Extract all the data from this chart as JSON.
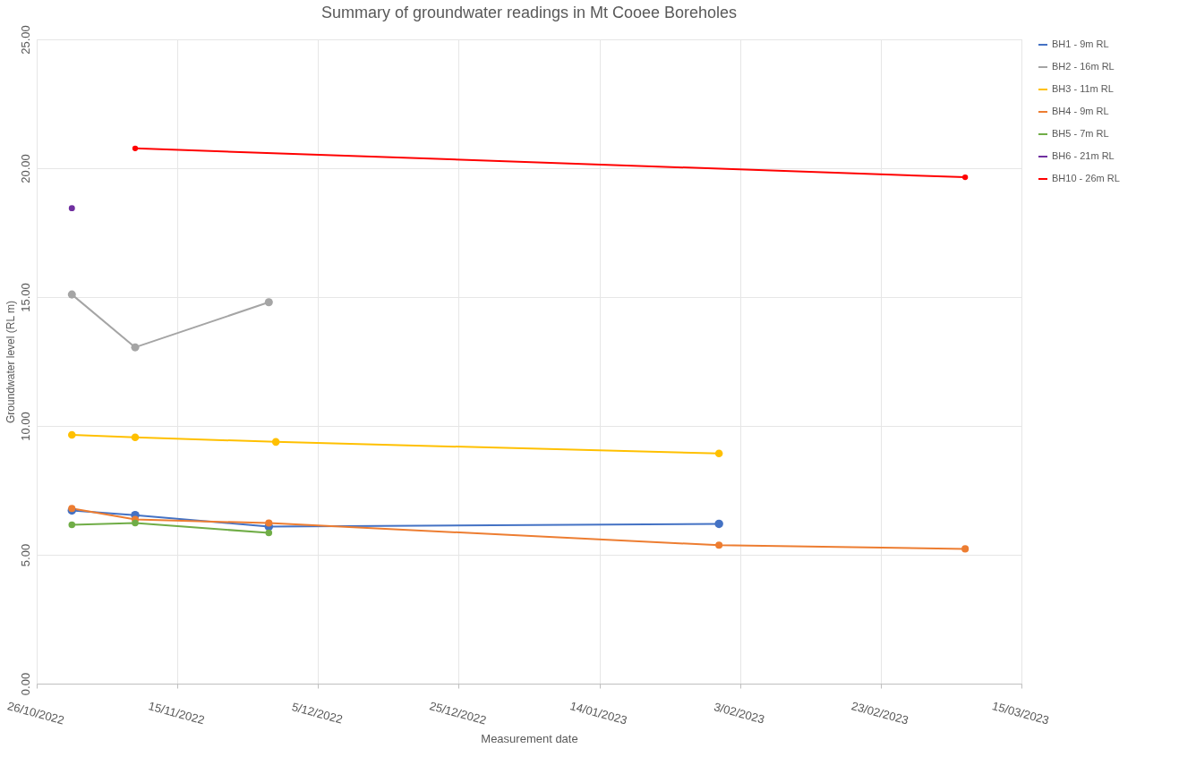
{
  "chart_data": {
    "type": "line",
    "title": "Summary of groundwater readings in Mt Cooee Boreholes",
    "xlabel": "Measurement date",
    "ylabel": "Groundwater level (RL m)",
    "x": [
      "2022-10-31",
      "2022-11-09",
      "2022-11-28",
      "2022-11-29",
      "2023-01-31",
      "2023-03-07"
    ],
    "series": [
      {
        "name": "BH1 - 9m RL",
        "color": "#4472c4",
        "values": [
          6.72,
          6.54,
          6.09,
          null,
          6.2,
          null
        ]
      },
      {
        "name": "BH2 - 16m RL",
        "color": "#a5a5a5",
        "values": [
          15.1,
          13.05,
          14.8,
          null,
          null,
          null
        ]
      },
      {
        "name": "BH3 - 11m RL",
        "color": "#ffc000",
        "values": [
          9.65,
          9.56,
          null,
          9.38,
          8.93,
          null
        ]
      },
      {
        "name": "BH4 - 9m RL",
        "color": "#ed7d31",
        "values": [
          6.8,
          6.37,
          6.23,
          null,
          5.37,
          5.23
        ]
      },
      {
        "name": "BH5 - 7m RL",
        "color": "#70ad47",
        "values": [
          6.16,
          6.23,
          5.85,
          null,
          null,
          null
        ]
      },
      {
        "name": "BH6 - 21m RL",
        "color": "#7030a0",
        "values": [
          18.45,
          null,
          null,
          null,
          null,
          null
        ]
      },
      {
        "name": "BH10 - 26m RL",
        "color": "#ff0000",
        "values": [
          null,
          20.77,
          null,
          null,
          null,
          19.65
        ]
      }
    ],
    "xlim": [
      "2022-10-26",
      "2023-03-15"
    ],
    "xticks": [
      {
        "value": "2022-10-26",
        "label": "26/10/2022"
      },
      {
        "value": "2022-11-15",
        "label": "15/11/2022"
      },
      {
        "value": "2022-12-05",
        "label": "5/12/2022"
      },
      {
        "value": "2022-12-25",
        "label": "25/12/2022"
      },
      {
        "value": "2023-01-14",
        "label": "14/01/2023"
      },
      {
        "value": "2023-02-03",
        "label": "3/02/2023"
      },
      {
        "value": "2023-02-23",
        "label": "23/02/2023"
      },
      {
        "value": "2023-03-15",
        "label": "15/03/2023"
      }
    ],
    "ylim": [
      0,
      25
    ],
    "yticks": [
      {
        "value": 0,
        "label": "0.00"
      },
      {
        "value": 5,
        "label": "5.00"
      },
      {
        "value": 10,
        "label": "10.00"
      },
      {
        "value": 15,
        "label": "15.00"
      },
      {
        "value": 20,
        "label": "20.00"
      },
      {
        "value": 25,
        "label": "25.00"
      }
    ],
    "grid": true,
    "legend": "right",
    "marker": "circle",
    "line_style": "solid"
  }
}
